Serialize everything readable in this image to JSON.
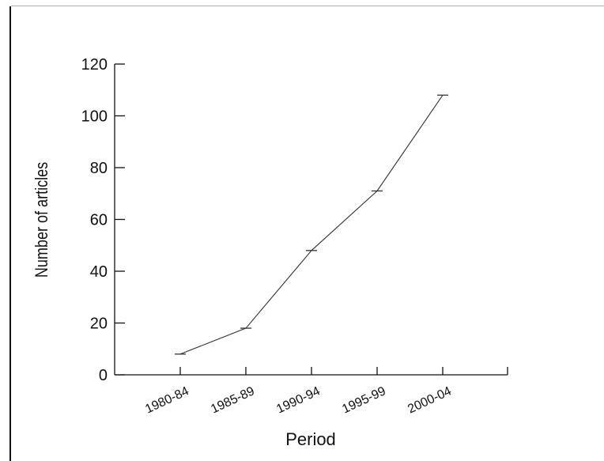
{
  "chart_data": {
    "type": "line",
    "categories": [
      "1980-84",
      "1985-89",
      "1990-94",
      "1995-99",
      "2000-04"
    ],
    "values": [
      8,
      18,
      48,
      71,
      108
    ],
    "xlabel": "Period",
    "ylabel": "Number of articles",
    "ylim": [
      0,
      120
    ],
    "yticks": [
      "0",
      "20",
      "40",
      "60",
      "80",
      "100",
      "120"
    ],
    "grid": false,
    "colors": {
      "line": "#333333",
      "axis": "#111111"
    }
  }
}
